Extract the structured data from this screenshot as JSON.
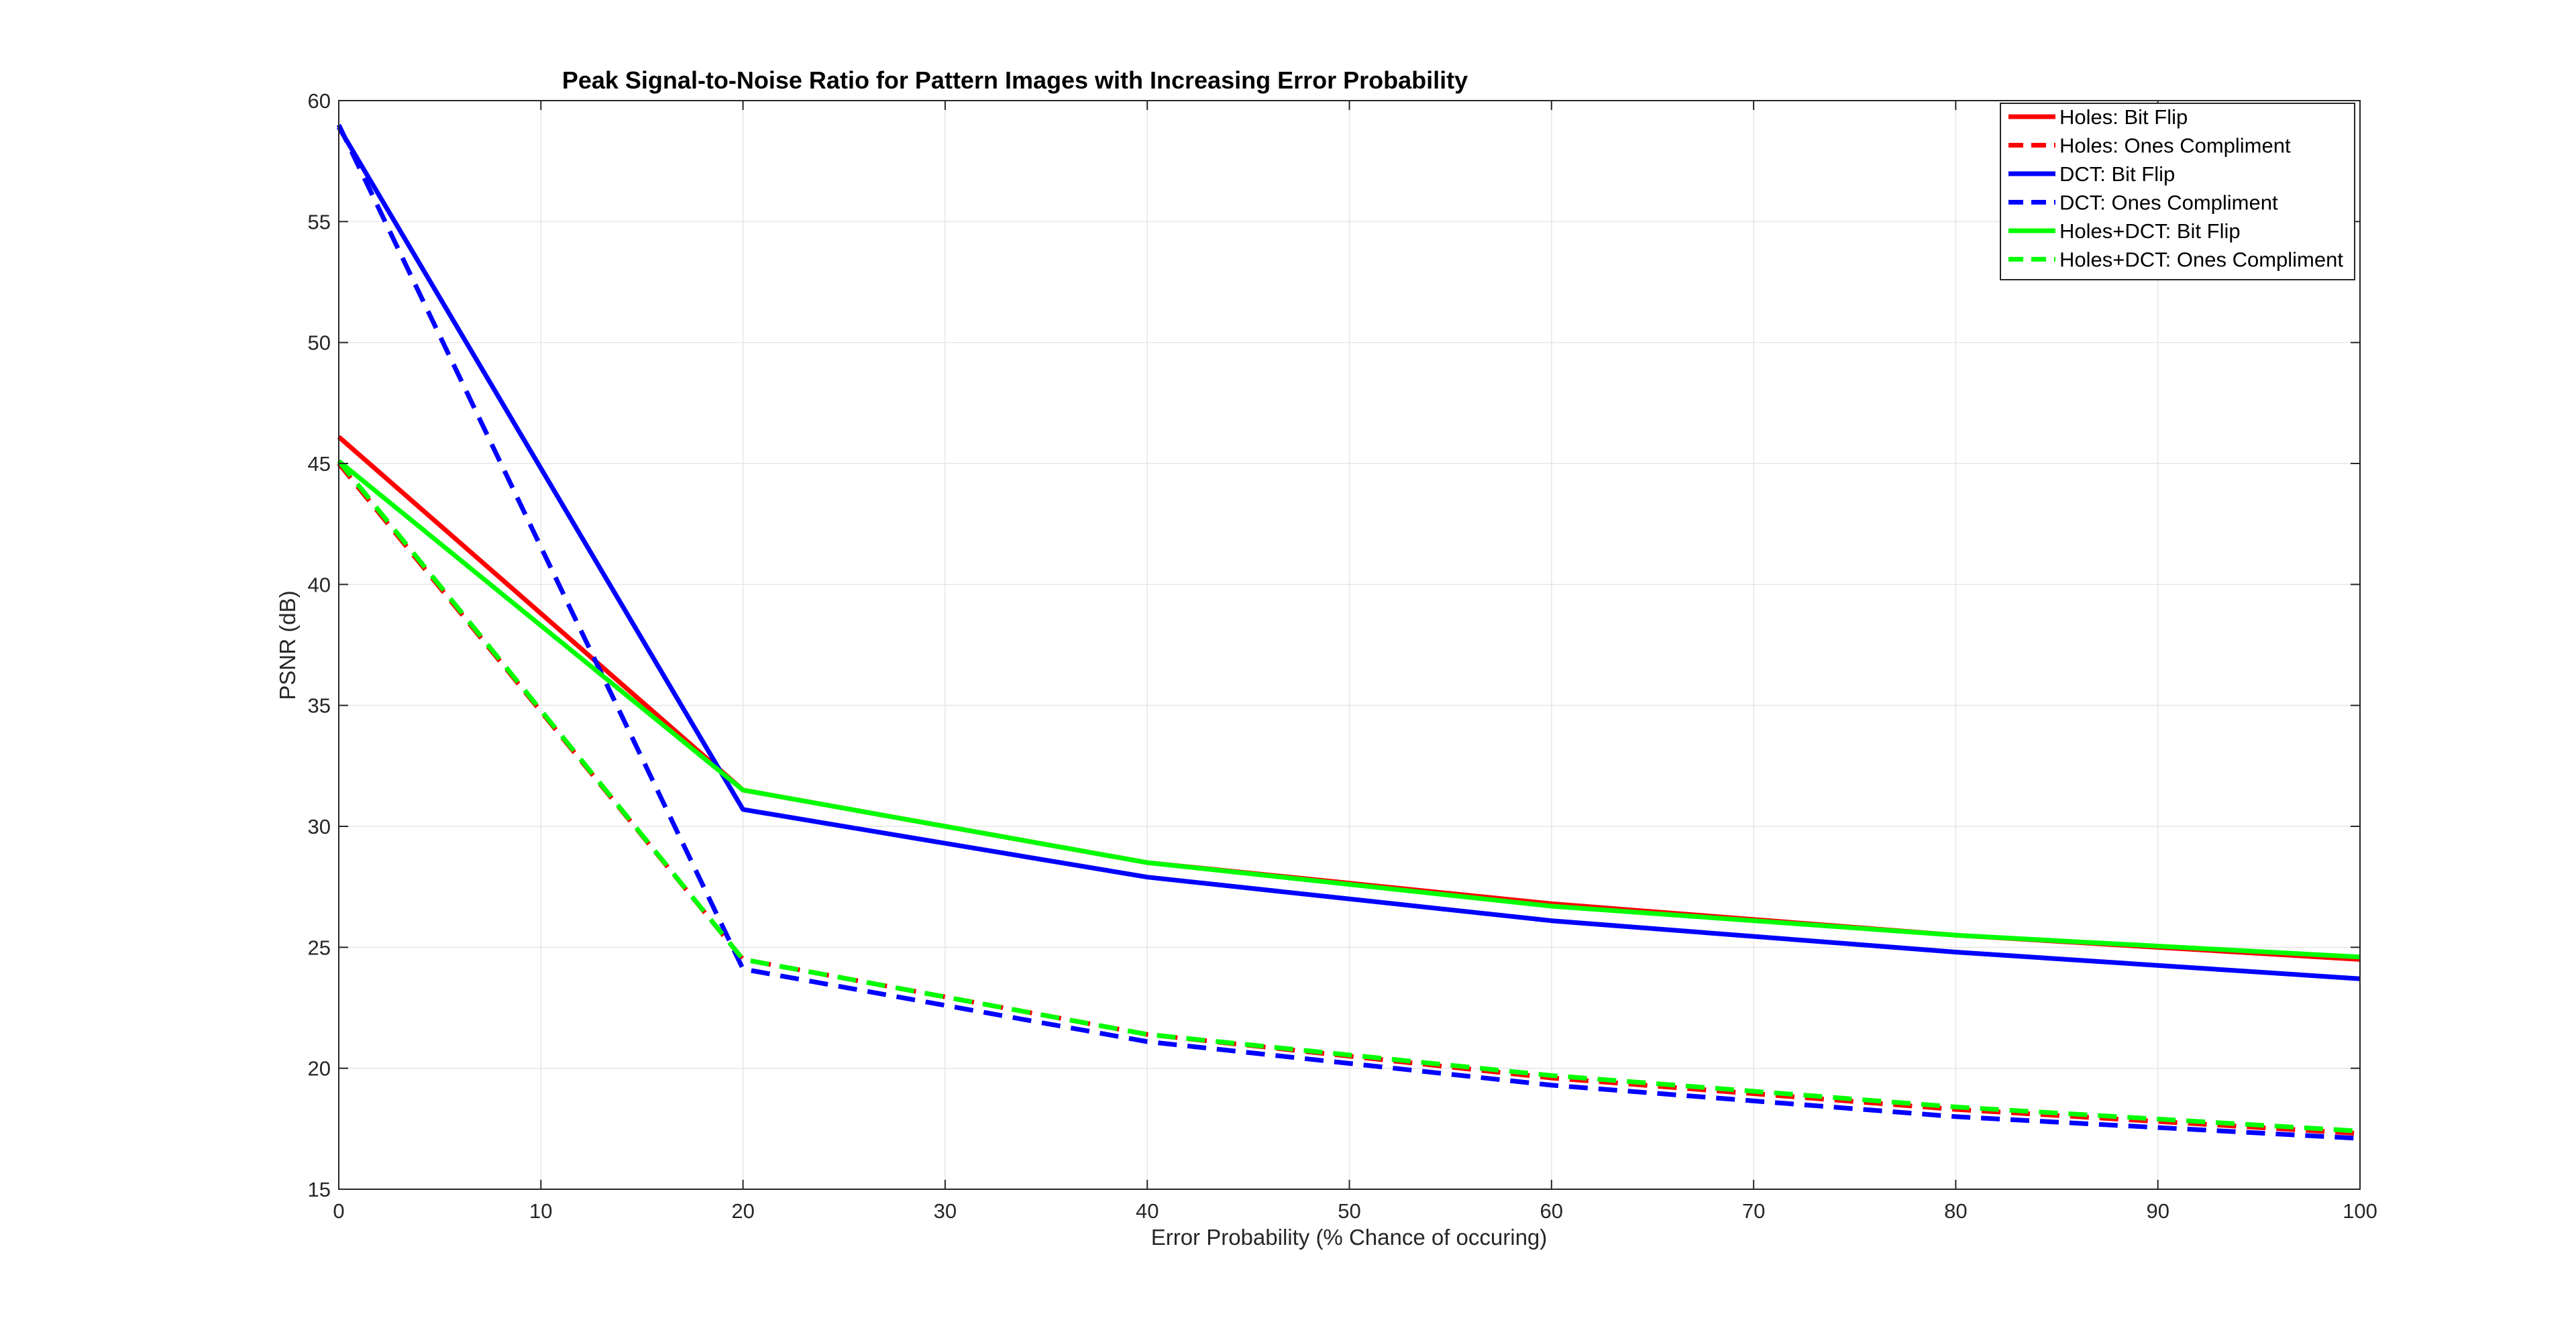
{
  "chart_data": {
    "type": "line",
    "title": "Peak Signal-to-Noise Ratio for Pattern Images with Increasing Error Probability",
    "xlabel": "Error Probability (% Chance of occuring)",
    "ylabel": "PSNR (dB)",
    "xlim": [
      0,
      100
    ],
    "ylim": [
      15,
      60
    ],
    "xticks": [
      0,
      10,
      20,
      30,
      40,
      50,
      60,
      70,
      80,
      90,
      100
    ],
    "yticks": [
      15,
      20,
      25,
      30,
      35,
      40,
      45,
      50,
      55,
      60
    ],
    "grid": true,
    "legend_position": "top-right",
    "x": [
      0,
      20,
      40,
      60,
      80,
      100
    ],
    "series": [
      {
        "name": "Holes: Bit Flip",
        "color": "#ff0000",
        "style": "solid",
        "values": [
          46.1,
          31.5,
          28.5,
          26.8,
          25.5,
          24.5
        ]
      },
      {
        "name": "Holes: Ones Compliment",
        "color": "#ff0000",
        "style": "dashed",
        "values": [
          45.0,
          24.5,
          21.4,
          19.6,
          18.3,
          17.3
        ]
      },
      {
        "name": "DCT: Bit Flip",
        "color": "#0000ff",
        "style": "solid",
        "values": [
          58.9,
          30.7,
          27.9,
          26.1,
          24.8,
          23.7
        ]
      },
      {
        "name": "DCT: Ones Compliment",
        "color": "#0000ff",
        "style": "dashed",
        "values": [
          59.0,
          24.1,
          21.1,
          19.3,
          18.0,
          17.1
        ]
      },
      {
        "name": "Holes+DCT: Bit Flip",
        "color": "#00ff00",
        "style": "solid",
        "values": [
          45.1,
          31.5,
          28.5,
          26.7,
          25.5,
          24.6
        ]
      },
      {
        "name": "Holes+DCT: Ones Compliment",
        "color": "#00ff00",
        "style": "dashed",
        "values": [
          45.1,
          24.5,
          21.4,
          19.7,
          18.4,
          17.4
        ]
      }
    ]
  }
}
